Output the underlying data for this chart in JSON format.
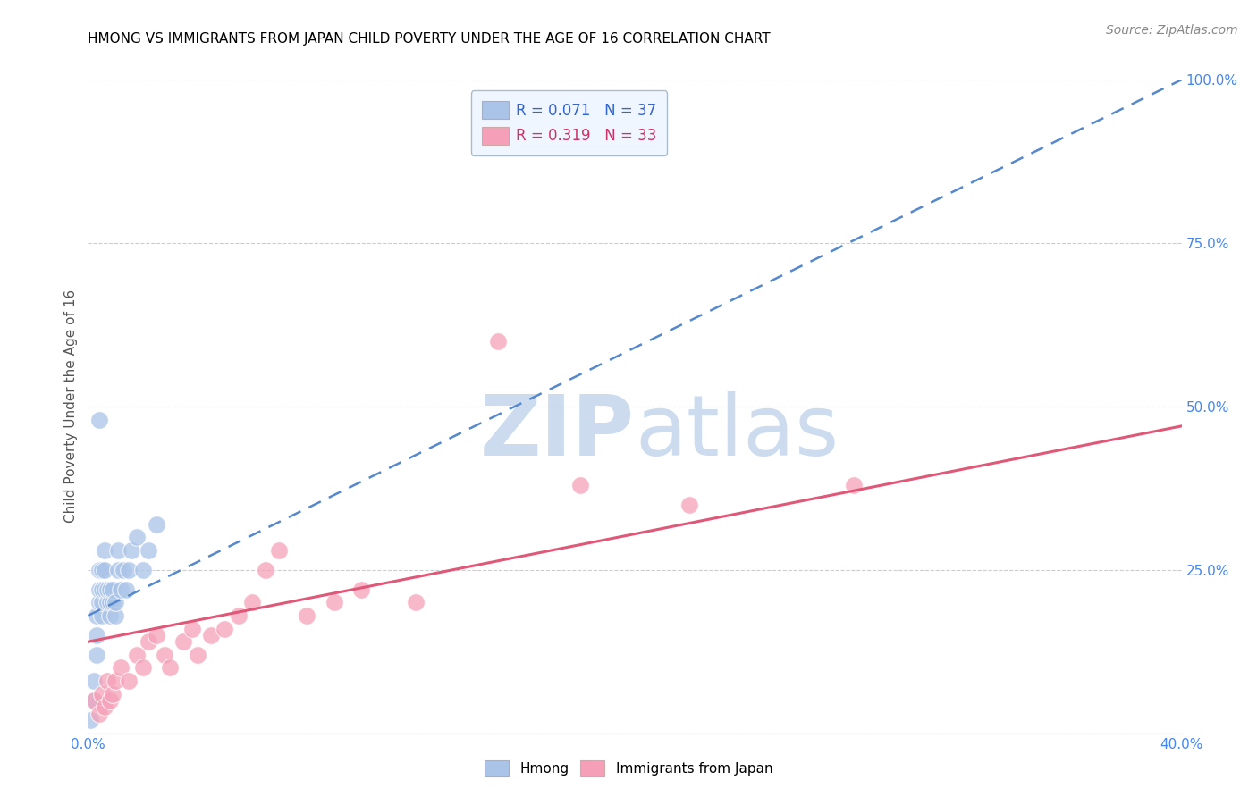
{
  "title": "HMONG VS IMMIGRANTS FROM JAPAN CHILD POVERTY UNDER THE AGE OF 16 CORRELATION CHART",
  "source": "Source: ZipAtlas.com",
  "ylabel": "Child Poverty Under the Age of 16",
  "xlim": [
    0.0,
    0.4
  ],
  "ylim": [
    0.0,
    1.0
  ],
  "hmong_R": 0.071,
  "hmong_N": 37,
  "japan_R": 0.319,
  "japan_N": 33,
  "hmong_color": "#aac4e8",
  "japan_color": "#f5a0b8",
  "hmong_trend_color": "#5588cc",
  "japan_trend_color": "#e05878",
  "watermark_ZIP_color": "#ccdcee",
  "watermark_atlas_color": "#ccdcee",
  "background_color": "#ffffff",
  "title_fontsize": 11,
  "source_fontsize": 10,
  "hmong_scatter_x": [
    0.001,
    0.002,
    0.002,
    0.003,
    0.003,
    0.003,
    0.004,
    0.004,
    0.004,
    0.005,
    0.005,
    0.005,
    0.005,
    0.006,
    0.006,
    0.006,
    0.007,
    0.007,
    0.008,
    0.008,
    0.008,
    0.009,
    0.009,
    0.01,
    0.01,
    0.011,
    0.011,
    0.012,
    0.013,
    0.014,
    0.015,
    0.016,
    0.018,
    0.02,
    0.022,
    0.025,
    0.004
  ],
  "hmong_scatter_y": [
    0.02,
    0.05,
    0.08,
    0.12,
    0.15,
    0.18,
    0.2,
    0.22,
    0.25,
    0.18,
    0.2,
    0.22,
    0.25,
    0.28,
    0.22,
    0.25,
    0.2,
    0.22,
    0.18,
    0.2,
    0.22,
    0.2,
    0.22,
    0.18,
    0.2,
    0.25,
    0.28,
    0.22,
    0.25,
    0.22,
    0.25,
    0.28,
    0.3,
    0.25,
    0.28,
    0.32,
    0.48
  ],
  "japan_scatter_x": [
    0.002,
    0.004,
    0.005,
    0.006,
    0.007,
    0.008,
    0.009,
    0.01,
    0.012,
    0.015,
    0.018,
    0.02,
    0.022,
    0.025,
    0.028,
    0.03,
    0.035,
    0.038,
    0.04,
    0.045,
    0.05,
    0.055,
    0.06,
    0.065,
    0.07,
    0.08,
    0.09,
    0.1,
    0.12,
    0.15,
    0.18,
    0.22,
    0.28
  ],
  "japan_scatter_y": [
    0.05,
    0.03,
    0.06,
    0.04,
    0.08,
    0.05,
    0.06,
    0.08,
    0.1,
    0.08,
    0.12,
    0.1,
    0.14,
    0.15,
    0.12,
    0.1,
    0.14,
    0.16,
    0.12,
    0.15,
    0.16,
    0.18,
    0.2,
    0.25,
    0.28,
    0.18,
    0.2,
    0.22,
    0.2,
    0.6,
    0.38,
    0.35,
    0.38
  ],
  "hmong_trend_x": [
    0.0,
    0.4
  ],
  "hmong_trend_y": [
    0.18,
    1.0
  ],
  "japan_trend_x": [
    0.0,
    0.4
  ],
  "japan_trend_y": [
    0.14,
    0.47
  ]
}
